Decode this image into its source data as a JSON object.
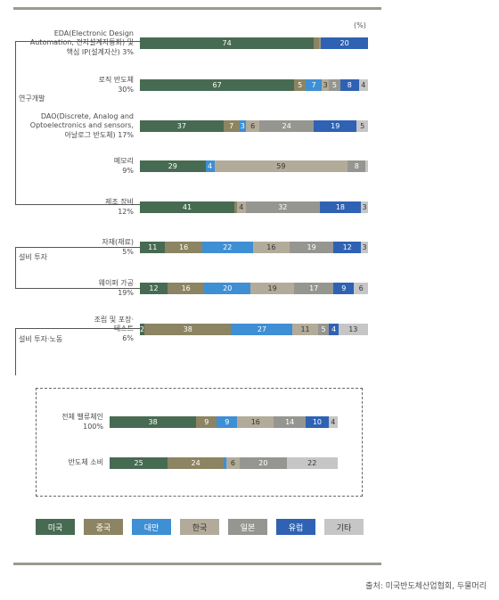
{
  "unit_label": "(%)",
  "source_text": "출처: 미국반도체산업협회, 두물머리",
  "colors": {
    "미국": "#476b52",
    "중국": "#8c8462",
    "대만": "#3e8fd4",
    "한국": "#b3ab9a",
    "일본": "#969690",
    "유럽": "#2f62b3",
    "기타": "#c6c6c6"
  },
  "groups": [
    {
      "label": "연구개발"
    },
    {
      "label": "설비 투자"
    },
    {
      "label": "설비 투자·노동"
    }
  ],
  "legend": [
    {
      "label": "미국",
      "key": "미국"
    },
    {
      "label": "중국",
      "key": "중국"
    },
    {
      "label": "대만",
      "key": "대만"
    },
    {
      "label": "한국",
      "key": "한국"
    },
    {
      "label": "일본",
      "key": "일본"
    },
    {
      "label": "유럽",
      "key": "유럽"
    },
    {
      "label": "기타",
      "key": "기타"
    }
  ],
  "chart_data": {
    "type": "bar",
    "stacked": true,
    "orientation": "horizontal",
    "unit": "%",
    "series_order": [
      "미국",
      "중국",
      "대만",
      "한국",
      "일본",
      "유럽",
      "기타"
    ],
    "rows": [
      {
        "label_lines": [
          "EDA(Electronic Design",
          "Automation, 전자설계자동화) 및",
          "핵심 IP(설계자산) 3%"
        ],
        "values": [
          74,
          2,
          0,
          0,
          1,
          20,
          0
        ],
        "labels": [
          "74",
          "",
          "",
          "",
          "",
          "20",
          ""
        ]
      },
      {
        "label_lines": [
          "로직 반도체",
          "30%"
        ],
        "values": [
          67,
          5,
          7,
          3,
          5,
          8,
          4
        ],
        "labels": [
          "67",
          "5",
          "7",
          "3",
          "5",
          "8",
          "4"
        ]
      },
      {
        "label_lines": [
          "DAO(Discrete, Analog and",
          "Optoelectronics and sensors,",
          "아날로그 반도체) 17%"
        ],
        "values": [
          37,
          7,
          3,
          6,
          24,
          19,
          5
        ],
        "labels": [
          "37",
          "7",
          "3",
          "6",
          "24",
          "19",
          "5"
        ]
      },
      {
        "label_lines": [
          "메모리",
          "9%"
        ],
        "values": [
          29,
          0,
          4,
          59,
          8,
          0,
          1
        ],
        "labels": [
          "29",
          "",
          "4",
          "59",
          "8",
          "",
          ""
        ]
      },
      {
        "label_lines": [
          "제조 장비",
          "12%"
        ],
        "values": [
          41,
          1,
          0,
          4,
          32,
          18,
          3
        ],
        "labels": [
          "41",
          "",
          "",
          "4",
          "32",
          "18",
          "3"
        ]
      },
      {
        "label_lines": [
          "자재(재료)",
          "5%"
        ],
        "values": [
          11,
          16,
          22,
          16,
          19,
          12,
          3
        ],
        "labels": [
          "11",
          "16",
          "22",
          "16",
          "19",
          "12",
          "3"
        ]
      },
      {
        "label_lines": [
          "웨이퍼 가공",
          "19%"
        ],
        "values": [
          12,
          16,
          20,
          19,
          17,
          9,
          6
        ],
        "labels": [
          "12",
          "16",
          "20",
          "19",
          "17",
          "9",
          "6"
        ]
      },
      {
        "label_lines": [
          "조립 및 포장·",
          "테스트",
          "6%"
        ],
        "values": [
          2,
          38,
          27,
          11,
          5,
          4,
          13
        ],
        "labels": [
          "2",
          "38",
          "27",
          "11",
          "5",
          "4",
          "13"
        ]
      },
      {
        "label_lines": [
          "전체 밸류체인",
          "100%"
        ],
        "values": [
          38,
          9,
          9,
          16,
          14,
          10,
          4
        ],
        "labels": [
          "38",
          "9",
          "9",
          "16",
          "14",
          "10",
          "4"
        ]
      },
      {
        "label_lines": [
          "반도체 소비"
        ],
        "values": [
          25,
          24,
          1,
          6,
          20,
          0,
          22
        ],
        "labels": [
          "25",
          "24",
          "",
          "6",
          "20",
          "",
          "22"
        ]
      }
    ]
  }
}
